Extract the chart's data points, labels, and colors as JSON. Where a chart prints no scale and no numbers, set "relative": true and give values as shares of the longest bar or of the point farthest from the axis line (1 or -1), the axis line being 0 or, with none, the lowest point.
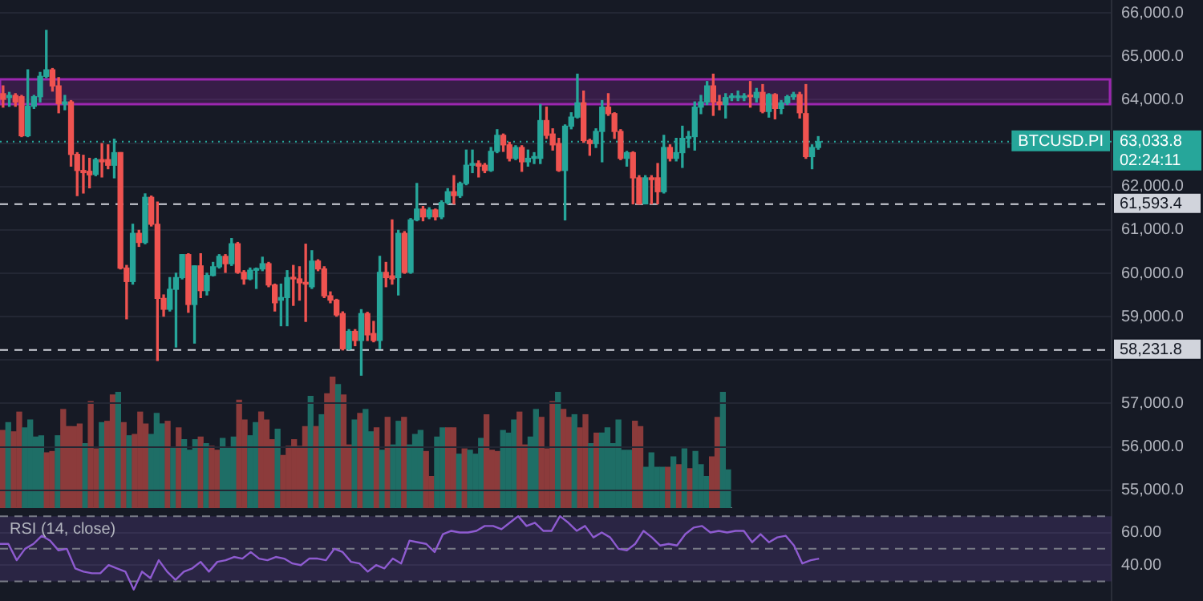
{
  "chart_data": [
    {
      "type": "candlestick",
      "categories": [
        null,
        null,
        null,
        null,
        null,
        null,
        null,
        null,
        null,
        null,
        null,
        null,
        null,
        null,
        null,
        null,
        null,
        null,
        null,
        null,
        null,
        null,
        null,
        null,
        null,
        null,
        null,
        null,
        null,
        null,
        null,
        null,
        null,
        null,
        null,
        null,
        null,
        null,
        null,
        null,
        null,
        null,
        null,
        null,
        null,
        null,
        null,
        null,
        null,
        null,
        null,
        null,
        null,
        null,
        null,
        null,
        null,
        null,
        null,
        null,
        null,
        null,
        null,
        null,
        null,
        null,
        null,
        null,
        null,
        null,
        null,
        null,
        null,
        null,
        null,
        null,
        null,
        null,
        null,
        null,
        null,
        null,
        null,
        null,
        null,
        null,
        null,
        null,
        null,
        null,
        null,
        null,
        null,
        null,
        null,
        null,
        null,
        null,
        null,
        null,
        null,
        null,
        null,
        null,
        null,
        null,
        null,
        null,
        null,
        null,
        null,
        null,
        null,
        null,
        null,
        null,
        null,
        null,
        null,
        null,
        null,
        null,
        null,
        null,
        null,
        null,
        null,
        null,
        null,
        null,
        null,
        null,
        null,
        null,
        null,
        null,
        null,
        null,
        null,
        null,
        null,
        null,
        null,
        null,
        null,
        null,
        null,
        null,
        null,
        null,
        null,
        null,
        null,
        null,
        null,
        null,
        null,
        null,
        null,
        null,
        null,
        null,
        null,
        null,
        null,
        null,
        null,
        null,
        null,
        null,
        null,
        null,
        null,
        null,
        null,
        null,
        null,
        null,
        null,
        null
      ],
      "ohlc": [
        [
          64140,
          64320,
          63830,
          64010
        ],
        [
          64050,
          64170,
          63850,
          64100
        ],
        [
          64100,
          64140,
          63850,
          63950
        ],
        [
          64070,
          64100,
          63150,
          63170
        ],
        [
          63170,
          64690,
          63150,
          63850
        ],
        [
          63850,
          64100,
          63800,
          64070
        ],
        [
          64070,
          64630,
          63950,
          64540
        ],
        [
          64540,
          65600,
          64510,
          64690
        ],
        [
          64690,
          64720,
          64200,
          64320
        ],
        [
          64320,
          64510,
          63700,
          63910
        ],
        [
          63900,
          64100,
          63770,
          63950
        ],
        [
          63950,
          63980,
          62470,
          62740
        ],
        [
          62740,
          62780,
          61790,
          62370
        ],
        [
          62370,
          62720,
          61850,
          62320
        ],
        [
          62350,
          62650,
          61970,
          62270
        ],
        [
          62280,
          62650,
          62250,
          62620
        ],
        [
          62620,
          62990,
          62220,
          62570
        ],
        [
          62620,
          62960,
          62410,
          62490
        ],
        [
          62490,
          63090,
          62200,
          62780
        ],
        [
          62780,
          62780,
          60100,
          60120
        ],
        [
          60120,
          60180,
          58950,
          59810
        ],
        [
          59810,
          61130,
          59750,
          60920
        ],
        [
          60920,
          60990,
          60620,
          60710
        ],
        [
          60710,
          61830,
          60680,
          61750
        ],
        [
          61750,
          61780,
          61090,
          61130
        ],
        [
          61130,
          61640,
          57990,
          59420
        ],
        [
          59420,
          59500,
          59010,
          59170
        ],
        [
          59170,
          59900,
          59130,
          59630
        ],
        [
          59630,
          60000,
          58300,
          59900
        ],
        [
          59900,
          60430,
          59870,
          60430
        ],
        [
          60430,
          60450,
          59100,
          59280
        ],
        [
          59280,
          60170,
          58390,
          60170
        ],
        [
          60170,
          60450,
          59440,
          59600
        ],
        [
          59600,
          60000,
          59500,
          59950
        ],
        [
          59950,
          60250,
          59940,
          60150
        ],
        [
          60150,
          60430,
          60120,
          60390
        ],
        [
          60390,
          60430,
          60020,
          60220
        ],
        [
          60220,
          60800,
          60180,
          60680
        ],
        [
          60680,
          60710,
          60000,
          60020
        ],
        [
          60020,
          60060,
          59750,
          59870
        ],
        [
          59870,
          60120,
          59850,
          60070
        ],
        [
          60070,
          60120,
          59650,
          60100
        ],
        [
          60100,
          60370,
          60060,
          60220
        ],
        [
          60220,
          60250,
          59690,
          59730
        ],
        [
          59730,
          59750,
          59130,
          59320
        ],
        [
          59380,
          59750,
          58790,
          59440
        ],
        [
          59440,
          60060,
          58790,
          59900
        ],
        [
          59900,
          60180,
          59260,
          59870
        ],
        [
          59870,
          60150,
          59380,
          59780
        ],
        [
          59790,
          60670,
          58890,
          59750
        ],
        [
          59690,
          60520,
          59650,
          60280
        ],
        [
          60280,
          60310,
          60060,
          60100
        ],
        [
          60100,
          60150,
          59440,
          59480
        ],
        [
          59480,
          59570,
          59320,
          59380
        ],
        [
          59380,
          59400,
          59010,
          59040
        ],
        [
          59070,
          59110,
          58231.8,
          58260
        ],
        [
          58260,
          58700,
          58240,
          58660
        ],
        [
          58660,
          58700,
          58330,
          58450
        ],
        [
          58450,
          59160,
          57650,
          59070
        ],
        [
          59070,
          59100,
          58450,
          58580
        ],
        [
          58610,
          58890,
          58420,
          58450
        ],
        [
          58450,
          60390,
          58260,
          60020
        ],
        [
          60020,
          60250,
          59690,
          59900
        ],
        [
          59940,
          61230,
          59750,
          59870
        ],
        [
          59900,
          60990,
          59500,
          60920
        ],
        [
          60920,
          60960,
          60000,
          60020
        ],
        [
          60020,
          61260,
          60000,
          61230
        ],
        [
          61230,
          62070,
          61210,
          61480
        ],
        [
          61480,
          61540,
          61210,
          61300
        ],
        [
          61300,
          61510,
          61260,
          61460
        ],
        [
          61460,
          61480,
          61230,
          61300
        ],
        [
          61300,
          61670,
          61260,
          61630
        ],
        [
          61630,
          61950,
          61600,
          61880
        ],
        [
          61880,
          62250,
          61600,
          61790
        ],
        [
          61790,
          62100,
          61750,
          62070
        ],
        [
          62070,
          62840,
          62040,
          62490
        ],
        [
          62490,
          62840,
          62320,
          62530
        ],
        [
          62530,
          62590,
          62220,
          62470
        ],
        [
          62490,
          62530,
          62320,
          62370
        ],
        [
          62370,
          62900,
          62350,
          62810
        ],
        [
          62810,
          63310,
          62780,
          63180
        ],
        [
          63180,
          63210,
          62810,
          62960
        ],
        [
          62960,
          63020,
          62590,
          62650
        ],
        [
          62650,
          62940,
          62620,
          62900
        ],
        [
          62900,
          62940,
          62350,
          62570
        ],
        [
          62570,
          62840,
          62470,
          62650
        ],
        [
          62650,
          62780,
          62530,
          62690
        ],
        [
          62650,
          63890,
          62530,
          63520
        ],
        [
          63520,
          63830,
          63110,
          63180
        ],
        [
          63210,
          63330,
          62840,
          62960
        ],
        [
          62990,
          63110,
          62350,
          62370
        ],
        [
          62370,
          63420,
          61230,
          63390
        ],
        [
          63390,
          63700,
          63330,
          63600
        ],
        [
          63600,
          64590,
          63580,
          63930
        ],
        [
          63930,
          64200,
          63020,
          63060
        ],
        [
          63060,
          63090,
          62720,
          62990
        ],
        [
          62990,
          63330,
          62900,
          63270
        ],
        [
          63270,
          63980,
          62570,
          63830
        ],
        [
          63830,
          64140,
          63640,
          63680
        ],
        [
          63680,
          63700,
          63110,
          63270
        ],
        [
          63270,
          63310,
          62620,
          62650
        ],
        [
          62650,
          62810,
          62470,
          62780
        ],
        [
          62780,
          62800,
          61600,
          62200
        ],
        [
          62200,
          62250,
          61593.4,
          61600
        ],
        [
          61600,
          62250,
          61600,
          62200
        ],
        [
          62200,
          62250,
          61600,
          62160
        ],
        [
          62200,
          62530,
          61600,
          61880
        ],
        [
          61880,
          63180,
          61850,
          62900
        ],
        [
          62900,
          62960,
          62590,
          62650
        ],
        [
          62650,
          63110,
          62590,
          62780
        ],
        [
          62780,
          63390,
          62440,
          63110
        ],
        [
          63110,
          63270,
          62900,
          63150
        ],
        [
          63150,
          63950,
          62840,
          63830
        ],
        [
          63830,
          64100,
          63680,
          63950
        ],
        [
          63950,
          64420,
          63890,
          64320
        ],
        [
          64320,
          64590,
          63640,
          63950
        ],
        [
          63950,
          64100,
          63770,
          63890
        ],
        [
          63890,
          64140,
          63580,
          64050
        ],
        [
          64050,
          64140,
          63980,
          64070
        ],
        [
          64050,
          64200,
          63980,
          64070
        ],
        [
          64050,
          64140,
          63980,
          64070
        ],
        [
          64100,
          64420,
          63830,
          64070
        ],
        [
          64050,
          64260,
          63950,
          64170
        ],
        [
          64170,
          64350,
          63700,
          63730
        ],
        [
          63730,
          64140,
          63600,
          64120
        ],
        [
          64120,
          64140,
          63560,
          63800
        ],
        [
          63800,
          63980,
          63680,
          63930
        ],
        [
          63930,
          64100,
          63890,
          64070
        ],
        [
          64070,
          64170,
          64010,
          64120
        ],
        [
          64120,
          64170,
          63580,
          63700
        ],
        [
          63680,
          64350,
          62650,
          62690
        ],
        [
          62690,
          62960,
          62410,
          62900
        ],
        [
          62900,
          63150,
          62860,
          63033.8
        ],
        null,
        null,
        null,
        null,
        null,
        null,
        null,
        null,
        null,
        null,
        null,
        null,
        null,
        null,
        null,
        null,
        null,
        null,
        null,
        null,
        null,
        null,
        null,
        null,
        null,
        null,
        null,
        null,
        null,
        null,
        null,
        null,
        null,
        null,
        null,
        null,
        null,
        null,
        null,
        null,
        null,
        null,
        null,
        null,
        null,
        null,
        null
      ],
      "colors": [
        "#ef5350",
        "#26a69a",
        "#ef5350",
        "#ef5350",
        "#26a69a",
        "#26a69a",
        "#26a69a",
        "#26a69a",
        "#ef5350",
        "#ef5350",
        "#26a69a",
        "#ef5350",
        "#ef5350",
        "#ef5350",
        "#ef5350",
        "#26a69a",
        "#ef5350",
        "#ef5350",
        "#26a69a",
        "#ef5350",
        "#ef5350",
        "#26a69a",
        "#ef5350",
        "#26a69a",
        "#ef5350",
        "#ef5350",
        "#ef5350",
        "#26a69a",
        "#26a69a",
        "#26a69a",
        "#ef5350",
        "#26a69a",
        "#ef5350",
        "#26a69a",
        "#26a69a",
        "#26a69a",
        "#ef5350",
        "#26a69a",
        "#ef5350",
        "#ef5350",
        "#26a69a",
        "#26a69a",
        "#26a69a",
        "#ef5350",
        "#ef5350",
        "#26a69a",
        "#26a69a",
        "#ef5350",
        "#ef5350",
        "#ef5350",
        "#26a69a",
        "#ef5350",
        "#ef5350",
        "#ef5350",
        "#ef5350",
        "#ef5350",
        "#26a69a",
        "#ef5350",
        "#26a69a",
        "#ef5350",
        "#ef5350",
        "#26a69a",
        "#ef5350",
        "#ef5350",
        "#26a69a",
        "#ef5350",
        "#26a69a",
        "#26a69a",
        "#ef5350",
        "#26a69a",
        "#ef5350",
        "#26a69a",
        "#26a69a",
        "#ef5350",
        "#26a69a",
        "#26a69a",
        "#26a69a",
        "#ef5350",
        "#ef5350",
        "#26a69a",
        "#26a69a",
        "#ef5350",
        "#ef5350",
        "#26a69a",
        "#ef5350",
        "#26a69a",
        "#26a69a",
        "#26a69a",
        "#ef5350",
        "#ef5350",
        "#ef5350",
        "#26a69a",
        "#26a69a",
        "#26a69a",
        "#ef5350",
        "#ef5350",
        "#26a69a",
        "#26a69a",
        "#ef5350",
        "#ef5350",
        "#ef5350",
        "#26a69a",
        "#ef5350",
        "#ef5350",
        "#26a69a",
        "#ef5350",
        "#ef5350",
        "#26a69a",
        "#ef5350",
        "#26a69a",
        "#26a69a",
        "#26a69a",
        "#26a69a",
        "#26a69a",
        "#26a69a",
        "#ef5350",
        "#ef5350",
        "#26a69a",
        "#26a69a",
        "#26a69a",
        "#26a69a",
        "#ef5350",
        "#26a69a",
        "#ef5350",
        "#26a69a",
        "#ef5350",
        "#26a69a",
        "#26a69a",
        "#26a69a",
        "#ef5350",
        "#ef5350",
        "#26a69a",
        "#26a69a",
        null,
        null,
        null,
        null,
        null,
        null,
        null,
        null,
        null,
        null,
        null,
        null,
        null,
        null,
        null,
        null,
        null,
        null,
        null,
        null,
        null,
        null,
        null,
        null,
        null,
        null,
        null,
        null,
        null,
        null,
        null,
        null,
        null,
        null,
        null,
        null,
        null,
        null,
        null,
        null,
        null,
        null,
        null,
        null,
        null,
        null,
        null
      ],
      "ylim": [
        54550,
        66300
      ],
      "yticks": [
        {
          "value": 55000,
          "label": "55,000.0"
        },
        {
          "value": 56000,
          "label": "56,000.0"
        },
        {
          "value": 57000,
          "label": "57,000.0"
        },
        {
          "value": 58000,
          "label": null
        },
        {
          "value": 59000,
          "label": "59,000.0"
        },
        {
          "value": 60000,
          "label": "60,000.0"
        },
        {
          "value": 61000,
          "label": "61,000.0"
        },
        {
          "value": 62000,
          "label": "62,000.0"
        },
        {
          "value": 63000,
          "label": null
        },
        {
          "value": 64000,
          "label": "64,000.0"
        },
        {
          "value": 65000,
          "label": "65,000.0"
        },
        {
          "value": 66000,
          "label": "66,000.0"
        }
      ],
      "tick_labels": "y",
      "grid": "y",
      "ref_lines": [
        {
          "axis": "y",
          "value": 61593.4,
          "label": "61,593.4",
          "color": "#d1d4dc",
          "line_style": "dashed"
        },
        {
          "axis": "y",
          "value": 58231.8,
          "label": "58,231.8",
          "color": "#d1d4dc",
          "line_style": "dashed"
        },
        {
          "axis": "y",
          "value": 63033.8,
          "label": "63,033.8",
          "color": "#26a69a",
          "line_style": "dotted"
        }
      ],
      "bands": [
        {
          "axis": "y",
          "from": 63900,
          "to": 64470,
          "color": "#9c27b0"
        }
      ],
      "annotations": [
        "BTCUSD.PI",
        "02:24:11"
      ]
    },
    {
      "type": "bar",
      "relative": true,
      "categories": [
        null,
        null,
        null,
        null,
        null,
        null,
        null,
        null,
        null,
        null,
        null,
        null,
        null,
        null,
        null,
        null,
        null,
        null,
        null,
        null,
        null,
        null,
        null,
        null,
        null,
        null,
        null,
        null,
        null,
        null,
        null,
        null,
        null,
        null,
        null,
        null,
        null,
        null,
        null,
        null,
        null,
        null,
        null,
        null,
        null,
        null,
        null,
        null,
        null,
        null,
        null,
        null,
        null,
        null,
        null,
        null,
        null,
        null,
        null,
        null,
        null,
        null,
        null,
        null,
        null,
        null,
        null,
        null,
        null,
        null,
        null,
        null,
        null,
        null,
        null,
        null,
        null,
        null,
        null,
        null,
        null,
        null,
        null,
        null,
        null,
        null,
        null,
        null,
        null,
        null,
        null,
        null,
        null,
        null,
        null,
        null,
        null,
        null,
        null,
        null,
        null,
        null,
        null,
        null,
        null,
        null,
        null,
        null,
        null,
        null,
        null,
        null,
        null,
        null,
        null,
        null,
        null,
        null,
        null,
        null,
        null,
        null,
        null,
        null,
        null,
        null,
        null,
        null,
        null,
        null,
        null,
        null,
        null
      ],
      "values": [
        0.59,
        0.65,
        0.58,
        0.73,
        0.61,
        0.67,
        0.54,
        0.55,
        0.42,
        0.43,
        0.55,
        0.75,
        0.62,
        0.62,
        0.64,
        0.49,
        0.81,
        0.45,
        0.65,
        0.66,
        0.86,
        0.88,
        0.65,
        0.55,
        0.56,
        0.73,
        0.64,
        0.56,
        0.72,
        0.64,
        0.66,
        0.46,
        0.61,
        0.52,
        0.44,
        0.52,
        0.54,
        0.49,
        0.47,
        0.44,
        0.53,
        0.46,
        0.54,
        0.82,
        0.67,
        0.55,
        0.65,
        0.73,
        0.67,
        0.52,
        0.6,
        0.4,
        0.47,
        0.52,
        0.47,
        0.62,
        0.85,
        0.62,
        0.71,
        0.87,
        1,
        0.94,
        0.86,
        0.48,
        0.67,
        0.72,
        0.75,
        0.58,
        0.61,
        0.44,
        0.69,
        0.48,
        0.66,
        0.69,
        0.48,
        0.56,
        0.59,
        0.43,
        0.24,
        0.54,
        0.61,
        0.61,
        0.61,
        0.41,
        0.45,
        0.44,
        0.41,
        0.53,
        0.71,
        0.44,
        0.43,
        0.59,
        0.57,
        0.67,
        0.73,
        0.48,
        0.54,
        0.75,
        0.69,
        0.45,
        0.81,
        0.88,
        0.75,
        0.69,
        0.71,
        0.61,
        0.71,
        0.49,
        0.57,
        0.57,
        0.61,
        0.49,
        0.67,
        0.44,
        0.44,
        0.66,
        0.62,
        0.31,
        0.42,
        0.31,
        0.31,
        0.31,
        0.39,
        0.33,
        0.45,
        0.3,
        0.43,
        0.33,
        0.24,
        0.39,
        0.69,
        0.88,
        0.29
      ],
      "colors": [
        "#8c3b3b",
        "#1e6e66",
        "#8c3b3b",
        "#8c3b3b",
        "#1e6e66",
        "#1e6e66",
        "#1e6e66",
        "#1e6e66",
        "#8c3b3b",
        "#8c3b3b",
        "#1e6e66",
        "#8c3b3b",
        "#8c3b3b",
        "#8c3b3b",
        "#8c3b3b",
        "#1e6e66",
        "#8c3b3b",
        "#8c3b3b",
        "#1e6e66",
        "#8c3b3b",
        "#8c3b3b",
        "#1e6e66",
        "#8c3b3b",
        "#1e6e66",
        "#8c3b3b",
        "#8c3b3b",
        "#8c3b3b",
        "#1e6e66",
        "#1e6e66",
        "#1e6e66",
        "#8c3b3b",
        "#1e6e66",
        "#8c3b3b",
        "#1e6e66",
        "#1e6e66",
        "#1e6e66",
        "#8c3b3b",
        "#1e6e66",
        "#8c3b3b",
        "#8c3b3b",
        "#1e6e66",
        "#1e6e66",
        "#1e6e66",
        "#8c3b3b",
        "#8c3b3b",
        "#1e6e66",
        "#1e6e66",
        "#8c3b3b",
        "#8c3b3b",
        "#8c3b3b",
        "#1e6e66",
        "#8c3b3b",
        "#8c3b3b",
        "#8c3b3b",
        "#8c3b3b",
        "#8c3b3b",
        "#1e6e66",
        "#8c3b3b",
        "#1e6e66",
        "#8c3b3b",
        "#8c3b3b",
        "#1e6e66",
        "#8c3b3b",
        "#8c3b3b",
        "#1e6e66",
        "#8c3b3b",
        "#1e6e66",
        "#1e6e66",
        "#8c3b3b",
        "#1e6e66",
        "#8c3b3b",
        "#1e6e66",
        "#1e6e66",
        "#8c3b3b",
        "#1e6e66",
        "#1e6e66",
        "#1e6e66",
        "#8c3b3b",
        "#8c3b3b",
        "#1e6e66",
        "#1e6e66",
        "#8c3b3b",
        "#8c3b3b",
        "#1e6e66",
        "#8c3b3b",
        "#1e6e66",
        "#1e6e66",
        "#1e6e66",
        "#8c3b3b",
        "#8c3b3b",
        "#8c3b3b",
        "#1e6e66",
        "#1e6e66",
        "#1e6e66",
        "#8c3b3b",
        "#8c3b3b",
        "#1e6e66",
        "#1e6e66",
        "#8c3b3b",
        "#8c3b3b",
        "#8c3b3b",
        "#1e6e66",
        "#8c3b3b",
        "#8c3b3b",
        "#1e6e66",
        "#8c3b3b",
        "#8c3b3b",
        "#1e6e66",
        "#8c3b3b",
        "#1e6e66",
        "#1e6e66",
        "#1e6e66",
        "#1e6e66",
        "#1e6e66",
        "#1e6e66",
        "#8c3b3b",
        "#8c3b3b",
        "#1e6e66",
        "#1e6e66",
        "#1e6e66",
        "#1e6e66",
        "#8c3b3b",
        "#1e6e66",
        "#8c3b3b",
        "#1e6e66",
        "#8c3b3b",
        "#1e6e66",
        "#1e6e66",
        "#1e6e66",
        "#8c3b3b",
        "#8c3b3b",
        "#1e6e66",
        "#1e6e66"
      ]
    },
    {
      "type": "line",
      "title": "RSI (14, close)",
      "categories": [
        null,
        null,
        null,
        null,
        null,
        null,
        null,
        null,
        null,
        null,
        null,
        null,
        null,
        null,
        null,
        null,
        null,
        null,
        null,
        null,
        null,
        null,
        null,
        null,
        null,
        null,
        null,
        null,
        null,
        null,
        null,
        null,
        null,
        null,
        null,
        null,
        null,
        null,
        null,
        null,
        null,
        null,
        null,
        null,
        null,
        null,
        null,
        null,
        null,
        null,
        null,
        null,
        null,
        null,
        null,
        null,
        null,
        null,
        null,
        null,
        null,
        null,
        null,
        null,
        null,
        null,
        null,
        null,
        null,
        null,
        null,
        null,
        null,
        null,
        null,
        null,
        null,
        null,
        null,
        null,
        null,
        null,
        null,
        null,
        null,
        null,
        null,
        null,
        null,
        null,
        null,
        null,
        null,
        null,
        null,
        null,
        null,
        null,
        null,
        null,
        null,
        null,
        null,
        null,
        null,
        null,
        null,
        null,
        null,
        null,
        null,
        null,
        null,
        null,
        null,
        null,
        null,
        null,
        null,
        null,
        null,
        null,
        null,
        null,
        null,
        null,
        null,
        null,
        null,
        null,
        null,
        null,
        null,
        null
      ],
      "values": [
        53,
        53,
        43,
        50,
        53,
        58,
        55,
        49,
        50,
        38,
        36,
        35,
        35,
        40,
        38,
        36,
        25,
        36,
        32,
        43,
        36,
        31,
        36,
        38,
        42,
        36,
        42,
        43,
        45,
        44,
        48,
        44,
        43,
        45,
        44,
        41,
        40,
        44,
        44,
        43,
        50,
        48,
        42,
        41,
        36,
        40,
        38,
        44,
        41,
        55,
        54,
        53,
        48,
        59,
        61,
        60,
        60,
        61,
        64,
        64,
        62,
        66,
        70,
        64,
        66,
        61,
        61,
        70,
        66,
        61,
        64,
        57,
        60,
        57,
        50,
        49,
        53,
        61,
        57,
        52,
        53,
        52,
        59,
        63,
        64,
        60,
        61,
        60,
        61,
        61,
        54,
        59,
        54,
        57,
        58,
        52,
        41,
        43,
        44,
        null,
        null,
        null,
        null,
        null,
        null,
        null,
        null,
        null,
        null,
        null,
        null,
        null,
        null,
        null,
        null,
        null,
        null,
        null,
        null,
        null,
        null,
        null,
        null,
        null,
        null,
        null,
        null,
        null,
        null,
        null,
        null,
        null,
        null,
        null
      ],
      "color": "#8e5bd0",
      "marker": "none",
      "ylim": [
        18,
        74
      ],
      "yticks": [
        {
          "value": 40,
          "label": "40.00"
        },
        {
          "value": 60,
          "label": "60.00"
        }
      ],
      "tick_labels": "y",
      "grid": "y",
      "ref_lines": [
        {
          "axis": "y",
          "value": 70,
          "color": "#787b86",
          "line_style": "dashed"
        },
        {
          "axis": "y",
          "value": 50,
          "color": "#787b86",
          "line_style": "dashed"
        },
        {
          "axis": "y",
          "value": 30,
          "color": "#787b86",
          "line_style": "dashed"
        }
      ],
      "bands": [
        {
          "axis": "y",
          "from": 30,
          "to": 70,
          "color": "#7e57c2"
        }
      ]
    }
  ]
}
